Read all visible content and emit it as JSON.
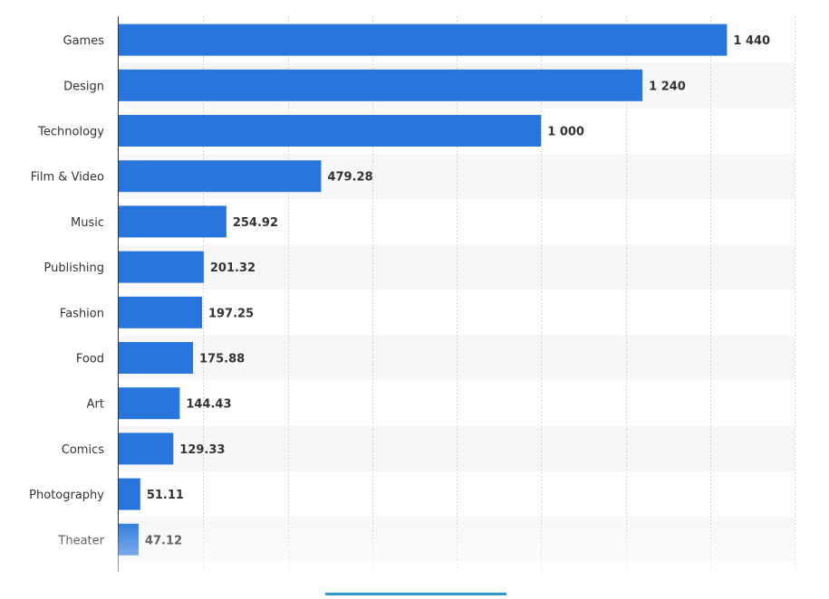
{
  "chart_data": {
    "type": "bar",
    "orientation": "horizontal",
    "categories": [
      "Games",
      "Design",
      "Technology",
      "Film & Video",
      "Music",
      "Publishing",
      "Fashion",
      "Food",
      "Art",
      "Comics",
      "Photography",
      "Theater"
    ],
    "values": [
      1440,
      1240,
      1000,
      479.28,
      254.92,
      201.32,
      197.25,
      175.88,
      144.43,
      129.33,
      51.11,
      47.12
    ],
    "value_labels": [
      "1 440",
      "1 240",
      "1 000",
      "479.28",
      "254.92",
      "201.32",
      "197.25",
      "175.88",
      "144.43",
      "129.33",
      "51.11",
      "47.12"
    ],
    "title": "",
    "xlabel": "",
    "ylabel": "",
    "xlim": [
      0,
      1600
    ],
    "grid": true,
    "legend": "none",
    "bar_color": "#2876dd",
    "stripe_color": "#f7f7f7"
  }
}
